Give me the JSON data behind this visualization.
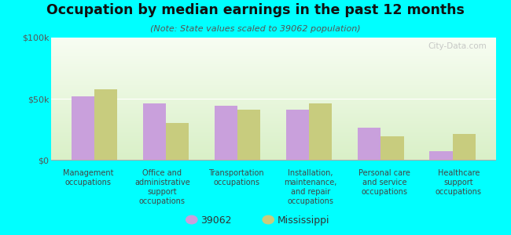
{
  "title": "Occupation by median earnings in the past 12 months",
  "subtitle": "(Note: State values scaled to 39062 population)",
  "categories": [
    "Management\noccupations",
    "Office and\nadministrative\nsupport\noccupations",
    "Transportation\noccupations",
    "Installation,\nmaintenance,\nand repair\noccupations",
    "Personal care\nand service\noccupations",
    "Healthcare\nsupport\noccupations"
  ],
  "values_39062": [
    52000,
    46000,
    44000,
    41000,
    26000,
    7000
  ],
  "values_mississippi": [
    58000,
    30000,
    41000,
    46000,
    19000,
    21000
  ],
  "color_39062": "#c9a0dc",
  "color_mississippi": "#c8cc7e",
  "background_color": "#00ffff",
  "ylim": [
    0,
    100000
  ],
  "ytick_labels": [
    "$0",
    "$50k",
    "$100k"
  ],
  "legend_label_39062": "39062",
  "legend_label_mississippi": "Mississippi",
  "bar_width": 0.32,
  "watermark": "City-Data.com"
}
